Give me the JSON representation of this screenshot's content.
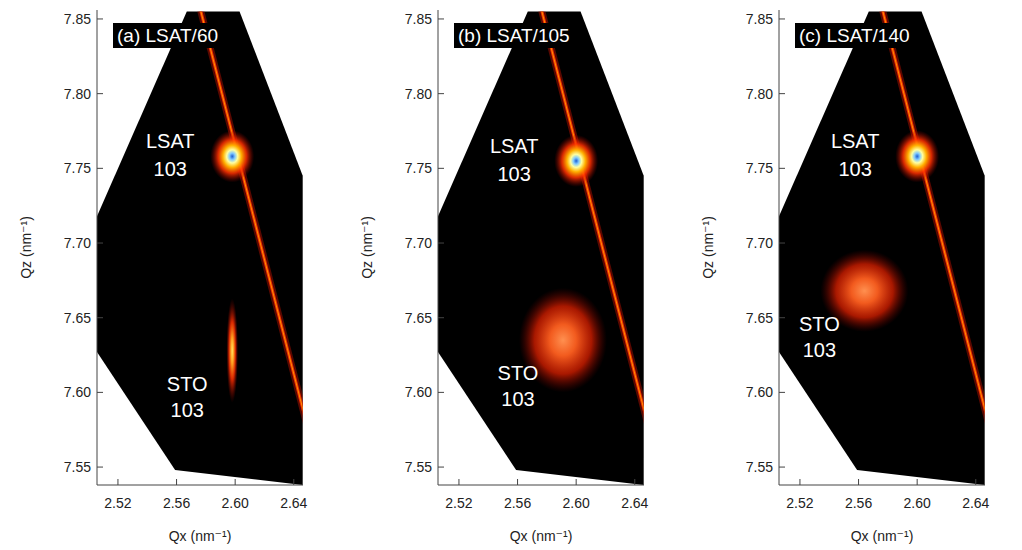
{
  "chart_data": [
    {
      "type": "map",
      "title": "(a) LSAT/60",
      "x_label": "Qx (nm⁻¹)",
      "y_label": "Qz (nm⁻¹)",
      "xlim": [
        2.5057,
        2.6463
      ],
      "ylim": [
        7.538,
        7.856
      ],
      "xticks": [
        2.52,
        2.56,
        {
          "value": 2.6,
          "label": "2.60"
        },
        2.64
      ],
      "yticks": [
        7.55,
        {
          "value": 7.6,
          "label": "7.60"
        },
        7.65,
        {
          "value": 7.7,
          "label": "7.70"
        },
        7.75,
        {
          "value": 7.8,
          "label": "7.80"
        },
        7.85
      ],
      "coverage": [
        [
          2.567,
          7.855
        ],
        [
          2.603,
          7.855
        ],
        [
          2.6461,
          7.745
        ],
        [
          2.6461,
          7.538
        ],
        [
          2.559,
          7.548
        ],
        [
          2.5057,
          7.627
        ],
        [
          2.5057,
          7.718
        ]
      ],
      "streak": [
        [
          2.5766,
          7.855
        ],
        [
          2.6509,
          7.5708
        ]
      ],
      "peaks": [
        {
          "label": "LSAT 103",
          "qx": 2.598,
          "qz": 7.758,
          "width_qx": 0.006,
          "width_qz": 0.007,
          "intensity": 1.0
        },
        {
          "label": "STO 103",
          "qx": 2.598,
          "qz": 7.628,
          "width_qx": 0.0016,
          "width_qz": 0.014,
          "intensity": 0.7
        }
      ]
    },
    {
      "type": "map",
      "title": "(b) LSAT/105",
      "x_label": "Qx (nm⁻¹)",
      "y_label": "Qz (nm⁻¹)",
      "xlim": [
        2.5057,
        2.6463
      ],
      "ylim": [
        7.538,
        7.856
      ],
      "xticks": [
        2.52,
        2.56,
        {
          "value": 2.6,
          "label": "2.60"
        },
        2.64
      ],
      "yticks": [
        7.55,
        {
          "value": 7.6,
          "label": "7.60"
        },
        7.65,
        {
          "value": 7.7,
          "label": "7.70"
        },
        7.75,
        {
          "value": 7.8,
          "label": "7.80"
        },
        7.85
      ],
      "coverage": [
        [
          2.567,
          7.855
        ],
        [
          2.603,
          7.855
        ],
        [
          2.6461,
          7.745
        ],
        [
          2.6461,
          7.538
        ],
        [
          2.559,
          7.548
        ],
        [
          2.5057,
          7.627
        ],
        [
          2.5057,
          7.718
        ]
      ],
      "streak": [
        [
          2.5766,
          7.855
        ],
        [
          2.6509,
          7.5708
        ]
      ],
      "peaks": [
        {
          "label": "LSAT 103",
          "qx": 2.6,
          "qz": 7.755,
          "width_qx": 0.006,
          "width_qz": 0.007,
          "intensity": 1.0
        },
        {
          "label": "STO 103",
          "qx": 2.591,
          "qz": 7.635,
          "width_qx": 0.012,
          "width_qz": 0.014,
          "intensity": 0.45
        }
      ]
    },
    {
      "type": "map",
      "title": "(c) LSAT/140",
      "x_label": "Qx (nm⁻¹)",
      "y_label": "Qz (nm⁻¹)",
      "xlim": [
        2.5057,
        2.6463
      ],
      "ylim": [
        7.538,
        7.856
      ],
      "xticks": [
        2.52,
        2.56,
        {
          "value": 2.6,
          "label": "2.60"
        },
        2.64
      ],
      "yticks": [
        7.55,
        {
          "value": 7.6,
          "label": "7.60"
        },
        7.65,
        {
          "value": 7.7,
          "label": "7.70"
        },
        7.75,
        {
          "value": 7.8,
          "label": "7.80"
        },
        7.85
      ],
      "coverage": [
        [
          2.567,
          7.855
        ],
        [
          2.603,
          7.855
        ],
        [
          2.6461,
          7.745
        ],
        [
          2.6461,
          7.538
        ],
        [
          2.559,
          7.548
        ],
        [
          2.5057,
          7.627
        ],
        [
          2.5057,
          7.718
        ]
      ],
      "streak": [
        [
          2.5766,
          7.855
        ],
        [
          2.6509,
          7.5708
        ]
      ],
      "peaks": [
        {
          "label": "LSAT 103",
          "qx": 2.6,
          "qz": 7.758,
          "width_qx": 0.006,
          "width_qz": 0.007,
          "intensity": 1.0
        },
        {
          "label": "STO 103",
          "qx": 2.564,
          "qz": 7.668,
          "width_qx": 0.012,
          "width_qz": 0.011,
          "intensity": 0.45
        }
      ]
    }
  ]
}
